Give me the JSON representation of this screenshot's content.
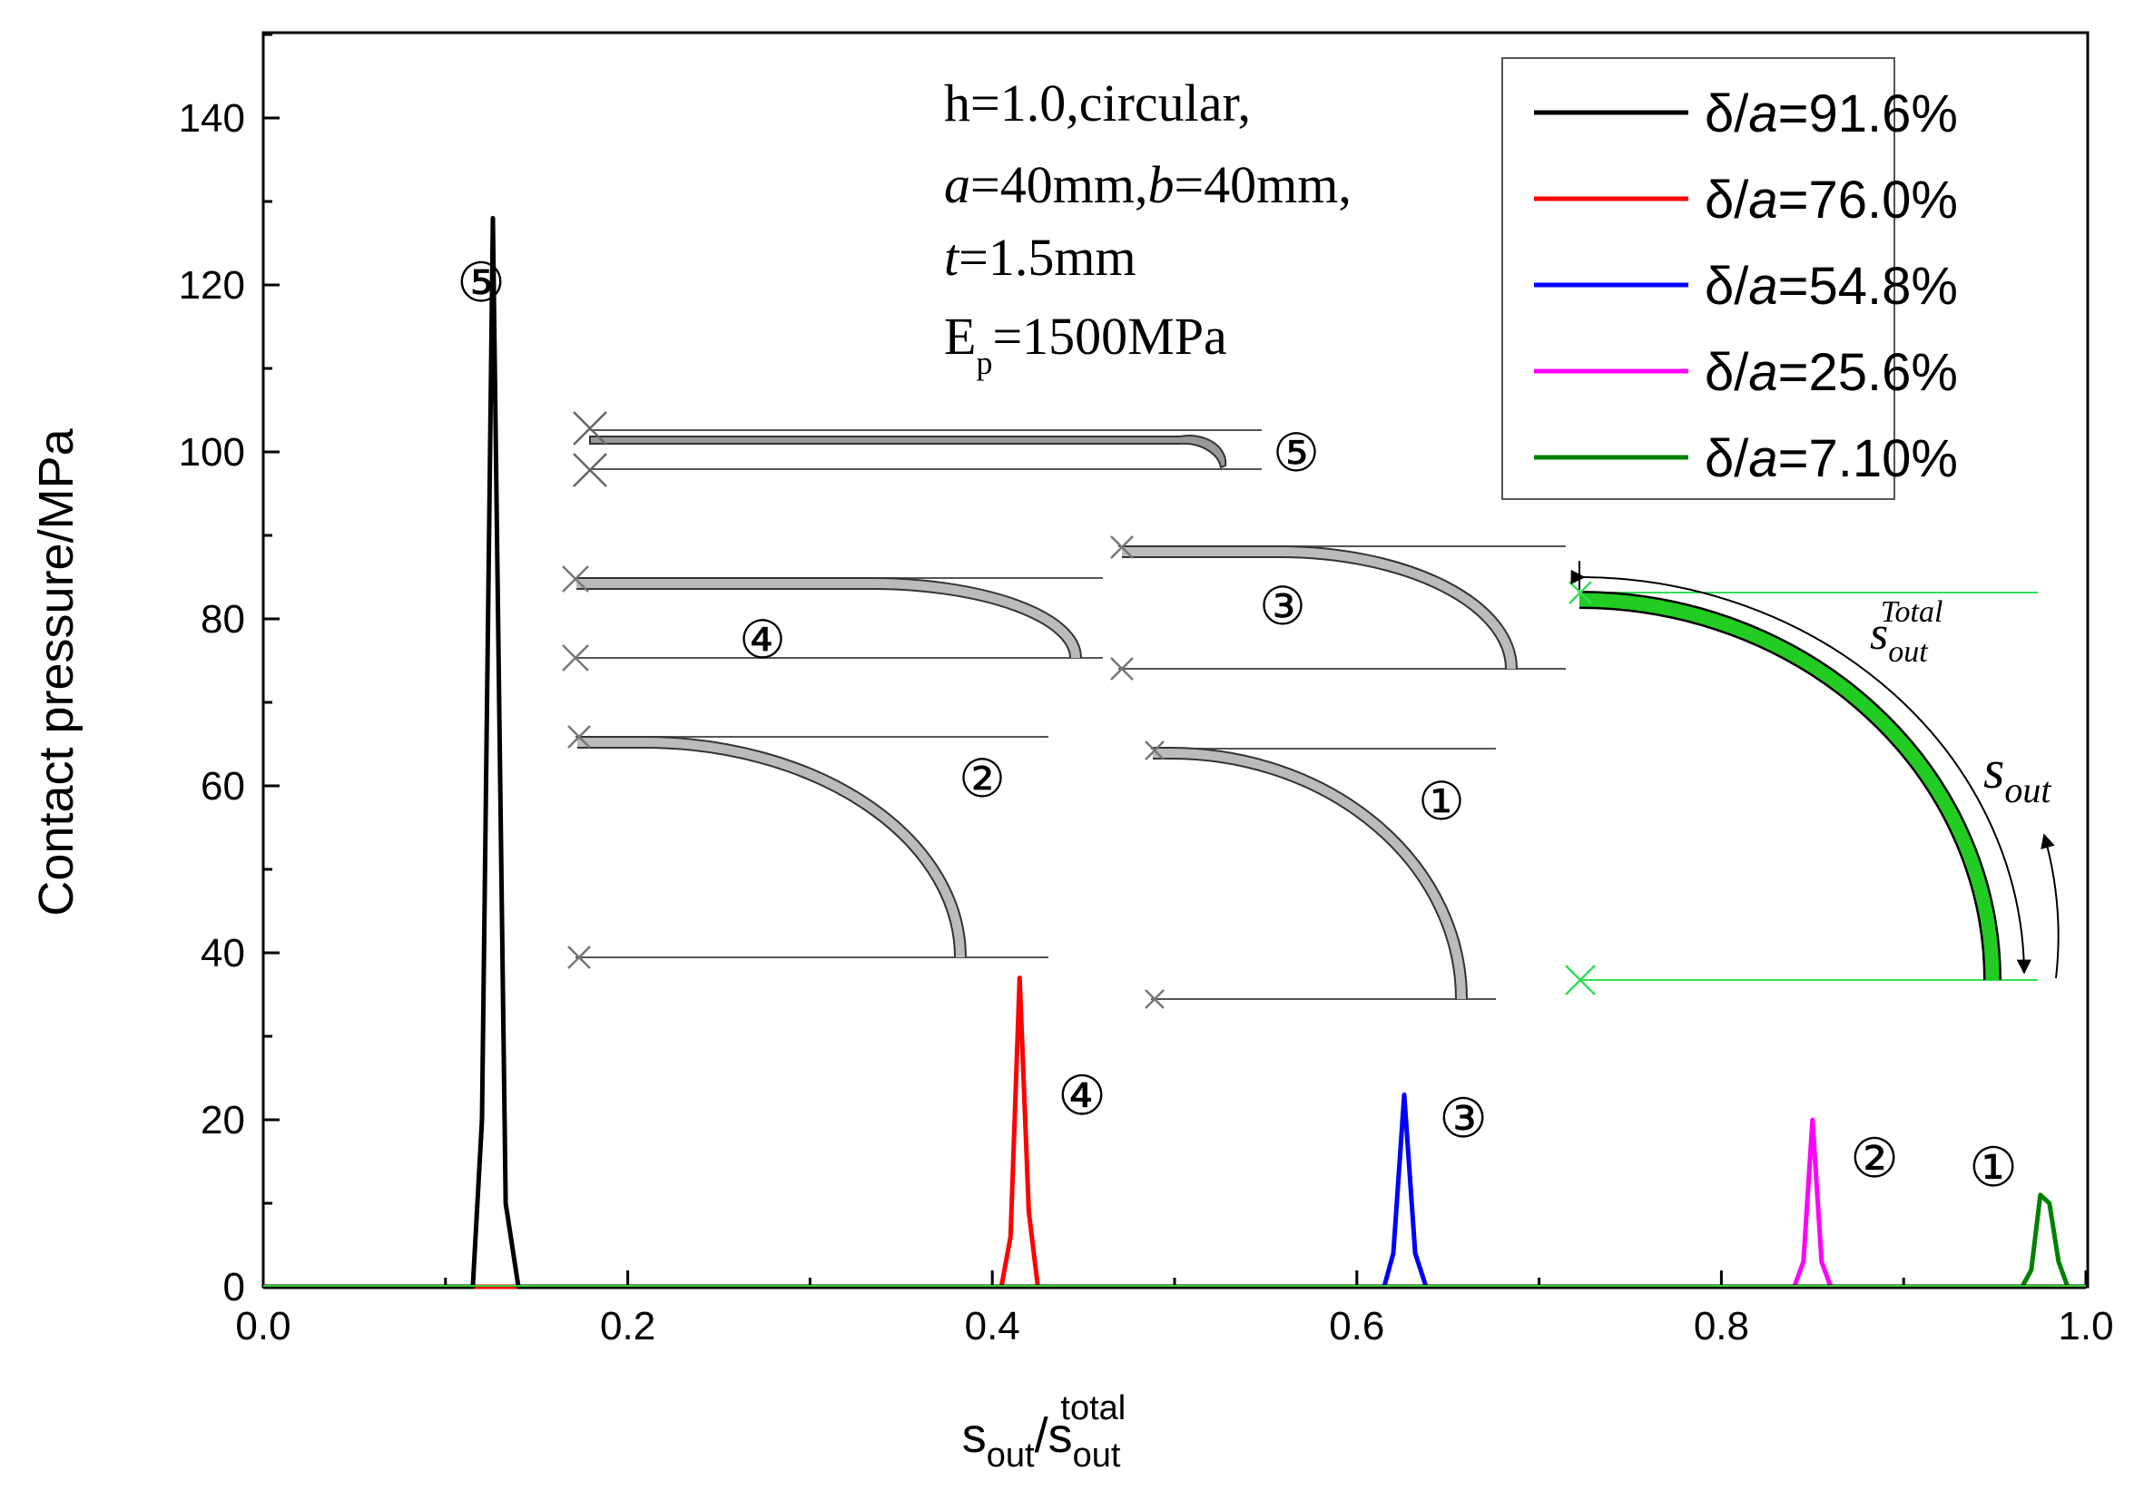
{
  "chart_data": {
    "type": "line",
    "title": "",
    "xlabel": "s_out/s_out^total",
    "xlabel_parts": {
      "main": "s",
      "sub": "out",
      "slash": "/",
      "main2": "s",
      "sub2": "out",
      "sup2": "total"
    },
    "ylabel": "Contact pressure/MPa",
    "xlim": [
      0.0,
      1.0
    ],
    "ylim": [
      0,
      150
    ],
    "xticks": [
      0.0,
      0.2,
      0.4,
      0.6,
      0.8,
      1.0
    ],
    "xtick_labels": [
      "0.0",
      "0.2",
      "0.4",
      "0.6",
      "0.8",
      "1.0"
    ],
    "yticks": [
      0,
      20,
      40,
      60,
      80,
      100,
      120,
      140
    ],
    "ytick_labels": [
      "0",
      "20",
      "40",
      "60",
      "80",
      "100",
      "120",
      "140"
    ],
    "legend_position": "top-right",
    "series": [
      {
        "name": "δ/a=91.6%",
        "prefix": "δ/",
        "italic": "a",
        "suffix": "=91.6%",
        "color": "#000000",
        "label": "⑤",
        "x": [
          0.0,
          0.115,
          0.12,
          0.126,
          0.133,
          0.14,
          1.0
        ],
        "y": [
          0,
          0,
          20,
          128,
          10,
          0,
          0
        ]
      },
      {
        "name": "δ/a=76.0%",
        "prefix": "δ/",
        "italic": "a",
        "suffix": "=76.0%",
        "color": "#ff0000",
        "label": "④",
        "x": [
          0.0,
          0.405,
          0.41,
          0.415,
          0.42,
          0.425,
          1.0
        ],
        "y": [
          0,
          0,
          6,
          37,
          9,
          0,
          0
        ]
      },
      {
        "name": "δ/a=54.8%",
        "prefix": "δ/",
        "italic": "a",
        "suffix": "=54.8%",
        "color": "#0000ff",
        "label": "③",
        "x": [
          0.0,
          0.615,
          0.62,
          0.626,
          0.632,
          0.638,
          1.0
        ],
        "y": [
          0,
          0,
          4,
          23,
          4,
          0,
          0
        ]
      },
      {
        "name": "δ/a=25.6%",
        "prefix": "δ/",
        "italic": "a",
        "suffix": "=25.6%",
        "color": "#ff00ff",
        "label": "②",
        "x": [
          0.0,
          0.84,
          0.845,
          0.85,
          0.855,
          0.86,
          1.0
        ],
        "y": [
          0,
          0,
          3,
          20,
          3,
          0,
          0
        ]
      },
      {
        "name": "δ/a=7.10%",
        "prefix": "δ/",
        "italic": "a",
        "suffix": "=7.10%",
        "color": "#008000",
        "label": "①",
        "x": [
          0.0,
          0.965,
          0.97,
          0.975,
          0.98,
          0.985,
          0.99,
          1.0
        ],
        "y": [
          0,
          0,
          2,
          11,
          10,
          3,
          0,
          0
        ]
      }
    ],
    "annotations": {
      "info_line1": "h=1.0,circular,",
      "info_a_italic": "a",
      "info_a_rest": "=40mm,",
      "info_b_italic": "b",
      "info_b_rest": "=40mm,",
      "info_t_italic": "t",
      "info_t_rest": "=1.5mm",
      "info_E": "E",
      "info_E_sub": "p",
      "info_E_rest": "=1500MPa",
      "inset_total_main": "s",
      "inset_total_sub": "out",
      "inset_total_sup": "Total",
      "inset_sout_main": "s",
      "inset_sout_sub": "out",
      "inset_labels": [
        "⑤",
        "④",
        "③",
        "②",
        "①"
      ]
    }
  }
}
